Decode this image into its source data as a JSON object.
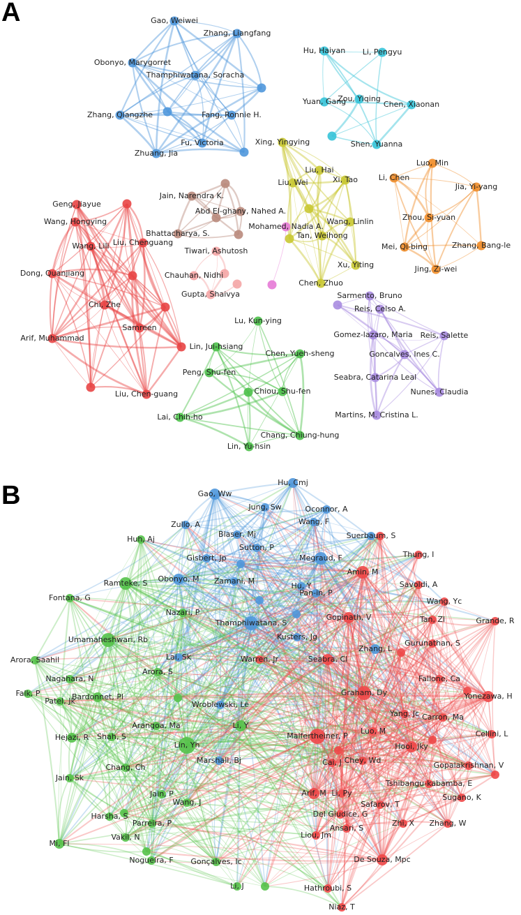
{
  "panels": [
    {
      "label": "A",
      "clusters": [
        {
          "color": "#4f97db",
          "nodes": [
            "Gao, Weiwei",
            "Zhang, Liangfang",
            "Obonyo, Marygorret",
            "Thamphiwatana, Soracha",
            "Zhang, Qiangzhe",
            "Fang, Ronnie H.",
            "Fu, Victoria",
            "Zhuang, Jia"
          ]
        },
        {
          "color": "#35c3d8",
          "nodes": [
            "Hu, Haiyan",
            "Li, Pengyu",
            "Zou, Yiqing",
            "Yuan, Gang",
            "Chen, Xiaonan",
            "Shen, Yuanna"
          ]
        },
        {
          "color": "#c9c832",
          "nodes": [
            "Xing, Yingying",
            "Liu, Hai",
            "Xi, Tao",
            "Liu, Wei",
            "Wang, Linlin",
            "Tan, Weihong",
            "Xu, Yiting",
            "Chen, Zhuo"
          ]
        },
        {
          "color": "#f08c28",
          "nodes": [
            "Luo, Min",
            "Li, Chen",
            "Jia, Yi-yang",
            "Zhou, Si-yuan",
            "Mei, Qi-bing",
            "Zhang, Bang-le",
            "Jing, Zi-wei"
          ]
        },
        {
          "color": "#b98a7c",
          "nodes": [
            "Jain, Narendra K.",
            "Abd El-ghany, Nahed A.",
            "Bhattacharya, S."
          ]
        },
        {
          "color": "#e67ad6",
          "nodes": [
            "Mohamed, Nadia A."
          ]
        },
        {
          "color": "#f4a5a5",
          "nodes": [
            "Tiwari, Ashutosh",
            "Chauhan, Nidhi",
            "Gupta, Shaivya"
          ]
        },
        {
          "color": "#e84545",
          "nodes": [
            "Geng, Jiayue",
            "Wang, Hongying",
            "Wang, Lili",
            "Liu, Chenguang",
            "Dong, Quanjiang",
            "Chi, Zhe",
            "Arif, Muhammad",
            "Samreen",
            "Liu, Chen-guang"
          ]
        },
        {
          "color": "#4cc04a",
          "nodes": [
            "Lu, Kun-ying",
            "Lin, Jui-hsiang",
            "Chen, Yueh-sheng",
            "Peng, Shu-fen",
            "Chiou, Shu-fen",
            "Lai, Chih-ho",
            "Chang, Chiung-hung",
            "Lin, Yu-hsin"
          ]
        },
        {
          "color": "#a88ce0",
          "nodes": [
            "Sarmento, Bruno",
            "Reis, Celso A.",
            "Gomez-lazaro, Maria",
            "Reis, Salette",
            "Goncalves, Ines C.",
            "Seabra, Catarina Leal",
            "Nunes, Claudia",
            "Martins, M. Cristina L."
          ]
        }
      ]
    },
    {
      "label": "B",
      "clusters": [
        {
          "color": "#4f97db",
          "nodes": [
            "Hu, Cmj",
            "Gao, Ww",
            "Jung, Sw",
            "Oconnor, A",
            "Zullo, A",
            "Wang, F",
            "Blaser, Mj",
            "Suerbaum, S",
            "Sutton, P",
            "Gisbert, Jp",
            "Megraud, F",
            "Zamani, M",
            "Obonyo, M",
            "Hu, Y",
            "Pan-in, P",
            "Thamphiwatana, S",
            "Kusters, Jg",
            "Zhang, L",
            "Lai, Sk",
            "Wroblewski, Le",
            "Marshall, Bj"
          ]
        },
        {
          "color": "#55c24a",
          "nodes": [
            "Huh, Aj",
            "Ramteke, S",
            "Fontana, G",
            "Nazari, P",
            "Umamaheshwari, Rb",
            "Arora, Saahil",
            "Nagahara, N",
            "Arora, S",
            "Falk, P",
            "Patel, Jk",
            "Bardonnet, Pl",
            "Arangoa, Ma",
            "Hejazi, R",
            "Shah, S",
            "Li, Y",
            "Lin, Yh",
            "Jain, Sk",
            "Chang, Ch",
            "Jain, P",
            "Wang, J",
            "Harsha, S",
            "Parreira, P",
            "Mi, Fl",
            "Vakil, N",
            "Nogueira, F",
            "Gonçalves, Ic",
            "Li, J"
          ]
        },
        {
          "color": "#ee4848",
          "nodes": [
            "Amin, M",
            "Thung, I",
            "Savoldi, A",
            "Wang, Yc",
            "Gopinath, V",
            "Tan, Zl",
            "Grande, R",
            "Gurunathan, S",
            "Warren, Jr",
            "Seabra, Cl",
            "Fallone, Ca",
            "Graham, Dy",
            "Yonezawa, H",
            "Yang, Jc",
            "Carron, Ma",
            "Cellini, L",
            "Malfertheiner, P",
            "Luo, M",
            "Hooi, Jky",
            "Cai, J",
            "Chey, Wd",
            "Gopalakrishnan, V",
            "Tshibangu-kabamba, E",
            "Arif, M",
            "Li, Py",
            "Safarov, T",
            "Sugano, K",
            "Del Giudice, G",
            "Ansari, S",
            "Zhi, X",
            "Zhang, W",
            "Liou, Jm",
            "De Souza, Mpc",
            "Hathroubi, S",
            "Niaz, T"
          ]
        }
      ]
    }
  ]
}
